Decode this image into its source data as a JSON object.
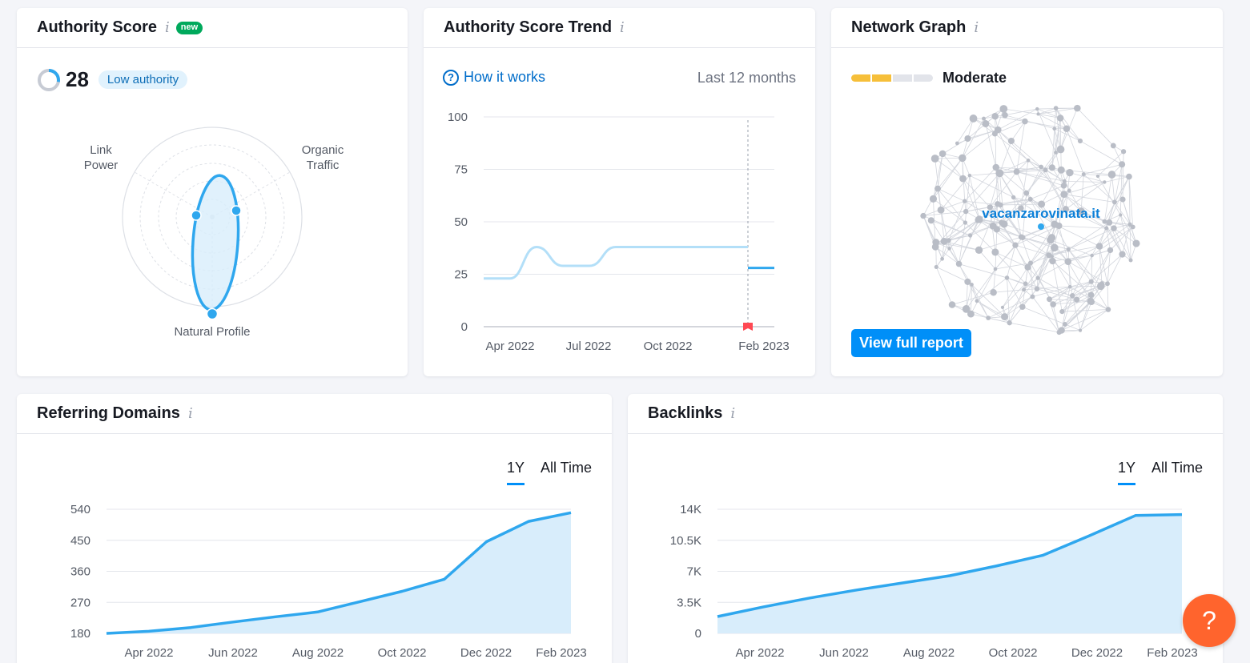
{
  "authority_score": {
    "title": "Authority Score",
    "badge": "new",
    "score": "28",
    "level_label": "Low authority",
    "radar_labels": {
      "link_power": [
        "Link",
        "Power"
      ],
      "organic_traffic": [
        "Organic",
        "Traffic"
      ],
      "natural_profile": "Natural Profile"
    },
    "colors": {
      "accent": "#2fa7ee",
      "fill": "#d8eefb"
    }
  },
  "trend": {
    "title": "Authority Score Trend",
    "how_it_works": "How it works",
    "period": "Last 12 months",
    "chart_data": {
      "type": "line",
      "y_ticks": [
        "100",
        "75",
        "50",
        "25",
        "0"
      ],
      "x_ticks": [
        "Apr 2022",
        "Jul 2022",
        "Oct 2022",
        "Feb 2023"
      ],
      "ylim": [
        0,
        100
      ],
      "series": [
        {
          "values": [
            23,
            23,
            38,
            29,
            29,
            38,
            38,
            38,
            38,
            38,
            38
          ]
        },
        {
          "values": [
            28,
            28
          ]
        }
      ]
    }
  },
  "network": {
    "title": "Network Graph",
    "strength_label": "Moderate",
    "domain": "vacanzarovinata.it",
    "view_button": "View full report"
  },
  "referring_domains": {
    "title": "Referring Domains",
    "tabs": [
      "1Y",
      "All Time"
    ],
    "chart_data": {
      "type": "area",
      "y_ticks": [
        "540",
        "450",
        "360",
        "270",
        "180"
      ],
      "x_ticks": [
        "Apr 2022",
        "Jun 2022",
        "Aug 2022",
        "Oct 2022",
        "Dec 2022",
        "Feb 2023"
      ],
      "ylim": [
        180,
        540
      ],
      "values": [
        180,
        186,
        197,
        213,
        228,
        242,
        272,
        302,
        337,
        446,
        505,
        530
      ]
    }
  },
  "backlinks": {
    "title": "Backlinks",
    "tabs": [
      "1Y",
      "All Time"
    ],
    "chart_data": {
      "type": "area",
      "y_ticks": [
        "14K",
        "10.5K",
        "7K",
        "3.5K",
        "0"
      ],
      "x_ticks": [
        "Apr 2022",
        "Jun 2022",
        "Aug 2022",
        "Oct 2022",
        "Dec 2022",
        "Feb 2023"
      ],
      "ylim": [
        0,
        14000
      ],
      "values": [
        1900,
        3000,
        4000,
        4900,
        5700,
        6500,
        7600,
        8800,
        11000,
        13300,
        13400
      ]
    }
  },
  "help": "?"
}
